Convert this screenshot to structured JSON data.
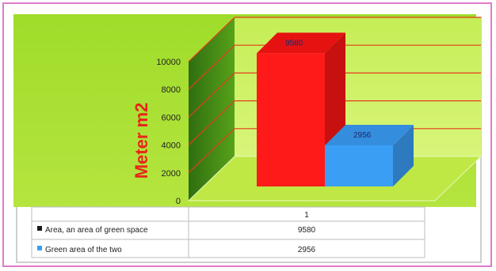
{
  "chart_data": {
    "type": "bar",
    "categories": [
      "1"
    ],
    "series": [
      {
        "name": "Area, an area of green space",
        "values": [
          9580
        ],
        "color": "#ff1a1a"
      },
      {
        "name": "Green area of the two",
        "values": [
          2956
        ],
        "color": "#3a9ef5"
      }
    ],
    "ylabel": "Meter m2",
    "ylim": [
      0,
      10000
    ],
    "yticks": [
      0,
      2000,
      4000,
      6000,
      8000,
      10000
    ],
    "data_labels": [
      "9580",
      "2956"
    ],
    "grid": true,
    "three_d": true,
    "data_table": true
  }
}
